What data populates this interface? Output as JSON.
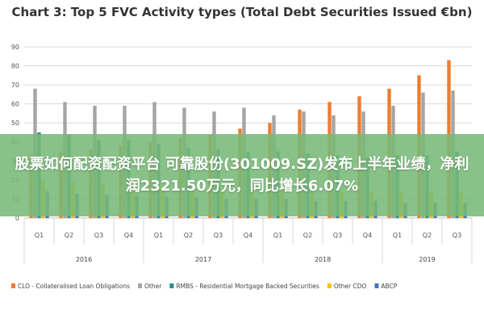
{
  "chart_data": {
    "type": "bar",
    "title": "Chart 3: Top 5 FVC Activity types (Total Debt Securities Issued €bn)",
    "categories": [
      "Q1",
      "Q2",
      "Q3",
      "Q4",
      "Q1",
      "Q2",
      "Q3",
      "Q4",
      "Q1",
      "Q2",
      "Q3",
      "Q4",
      "Q1",
      "Q2",
      "Q3"
    ],
    "years": [
      {
        "label": "2016",
        "quarters": 4
      },
      {
        "label": "2017",
        "quarters": 4
      },
      {
        "label": "2018",
        "quarters": 4
      },
      {
        "label": "2019",
        "quarters": 3
      }
    ],
    "ylim": [
      0,
      90
    ],
    "yticks": [
      0,
      10,
      20,
      30,
      40,
      50,
      60,
      70,
      80,
      90
    ],
    "grid": true,
    "legend_position": "bottom",
    "series": [
      {
        "name": "CLO - Collateralised Loan Obligations",
        "color": "#ed7d31",
        "values": [
          33,
          35,
          36,
          38,
          40,
          42,
          44,
          47,
          50,
          57,
          61,
          64,
          68,
          75,
          83
        ]
      },
      {
        "name": "Other",
        "color": "#a5a5a5",
        "values": [
          68,
          61,
          59,
          59,
          61,
          58,
          56,
          58,
          54,
          56,
          54,
          56,
          59,
          66,
          67
        ]
      },
      {
        "name": "RMBS - Residential Mortgage Backed Securities",
        "color": "#2e8b8b",
        "values": [
          45,
          44,
          41,
          41,
          39,
          37,
          36,
          35,
          35,
          34,
          33,
          32,
          33,
          33,
          35
        ]
      },
      {
        "name": "Other CDO",
        "color": "#ffc000",
        "values": [
          20,
          19,
          18,
          17,
          16,
          16,
          15,
          15,
          15,
          14,
          14,
          14,
          14,
          14,
          14
        ]
      },
      {
        "name": "ABCP",
        "color": "#4472c4",
        "values": [
          14,
          13,
          12,
          12,
          11,
          11,
          10,
          10,
          10,
          9,
          9,
          9,
          8,
          8,
          8
        ]
      }
    ]
  },
  "overlay": {
    "text": "股票如何配资配资平台 可靠股份(301009.SZ)发布上半年业绩，净利润2321.50万元，同比增长6.07%"
  }
}
